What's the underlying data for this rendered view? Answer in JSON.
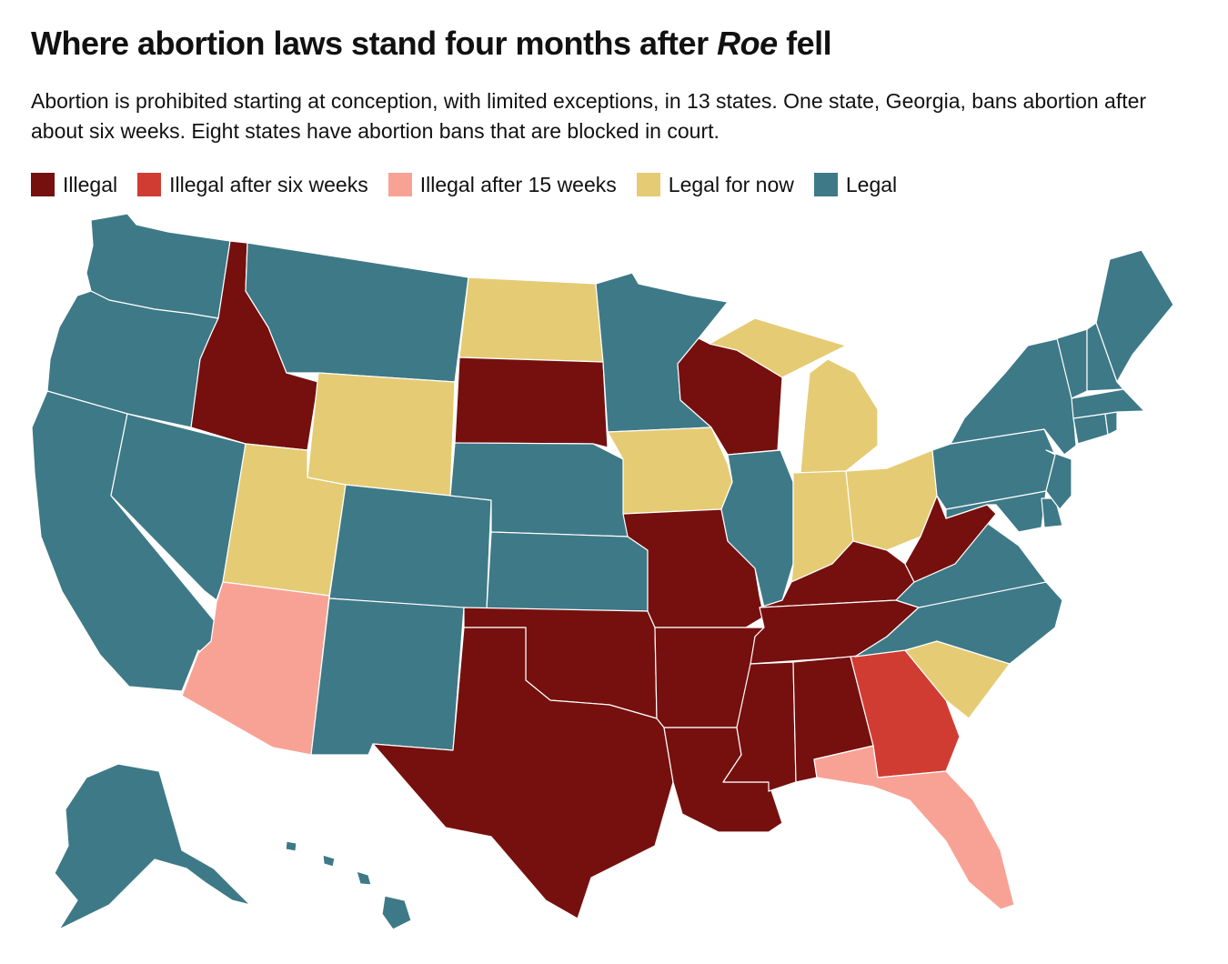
{
  "header": {
    "title_prefix": "Where abortion laws stand four months after ",
    "title_emphasis": "Roe",
    "title_suffix": " fell",
    "subtitle": "Abortion is prohibited starting at conception, with limited exceptions, in 13 states. One state, Georgia, bans abortion after about six weeks. Eight states have abortion bans that are blocked in court."
  },
  "legend": [
    {
      "key": "illegal",
      "label": "Illegal",
      "color": "#75100e"
    },
    {
      "key": "six_weeks",
      "label": "Illegal after six weeks",
      "color": "#d13c32"
    },
    {
      "key": "fifteen_weeks",
      "label": "Illegal after 15 weeks",
      "color": "#f8a295"
    },
    {
      "key": "legal_for_now",
      "label": "Legal for now",
      "color": "#e5cb73"
    },
    {
      "key": "legal",
      "label": "Legal",
      "color": "#3e7987"
    }
  ],
  "states": {
    "WA": "legal",
    "OR": "legal",
    "CA": "legal",
    "NV": "legal",
    "ID": "illegal",
    "MT": "legal",
    "WY": "legal_for_now",
    "UT": "legal_for_now",
    "AZ": "fifteen_weeks",
    "CO": "legal",
    "NM": "legal",
    "ND": "legal_for_now",
    "SD": "illegal",
    "NE": "legal",
    "KS": "legal",
    "OK": "illegal",
    "TX": "illegal",
    "MN": "legal",
    "IA": "legal_for_now",
    "MO": "illegal",
    "AR": "illegal",
    "LA": "illegal",
    "WI": "illegal",
    "IL": "legal",
    "MI": "legal_for_now",
    "IN": "legal_for_now",
    "OH": "legal_for_now",
    "KY": "illegal",
    "TN": "illegal",
    "MS": "illegal",
    "AL": "illegal",
    "GA": "six_weeks",
    "FL": "fifteen_weeks",
    "SC": "legal_for_now",
    "NC": "legal",
    "VA": "legal",
    "WV": "illegal",
    "PA": "legal",
    "NY": "legal",
    "NJ": "legal",
    "DE": "legal",
    "MD": "legal",
    "VT": "legal",
    "NH": "legal",
    "ME": "legal",
    "MA": "legal",
    "CT": "legal",
    "RI": "legal",
    "AK": "legal",
    "HI": "legal"
  }
}
